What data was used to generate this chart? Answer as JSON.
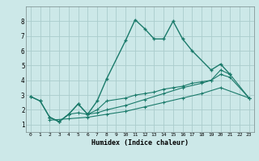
{
  "xlabel": "Humidex (Indice chaleur)",
  "background_color": "#cce8e8",
  "grid_color": "#aacccc",
  "line_color": "#1a7a6a",
  "xlim": [
    -0.5,
    23.5
  ],
  "ylim": [
    0.5,
    9.0
  ],
  "xticks": [
    0,
    1,
    2,
    3,
    4,
    5,
    6,
    7,
    8,
    9,
    10,
    11,
    12,
    13,
    14,
    15,
    16,
    17,
    18,
    19,
    20,
    21,
    22,
    23
  ],
  "yticks": [
    1,
    2,
    3,
    4,
    5,
    6,
    7,
    8
  ],
  "line1_x": [
    0,
    1,
    2,
    3,
    4,
    5,
    6,
    7,
    8,
    10,
    11,
    12,
    13,
    14,
    15,
    16,
    17,
    19,
    20,
    21
  ],
  "line1_y": [
    2.9,
    2.6,
    1.5,
    1.2,
    1.7,
    2.4,
    1.7,
    2.6,
    4.1,
    6.7,
    8.1,
    7.5,
    6.8,
    6.8,
    8.0,
    6.8,
    6.0,
    4.7,
    5.1,
    4.4
  ],
  "line2_x": [
    0,
    1,
    2,
    3,
    4,
    5,
    6,
    7,
    8,
    10,
    11,
    12,
    13,
    14,
    15,
    16,
    17,
    18,
    19,
    20,
    21,
    23
  ],
  "line2_y": [
    2.9,
    2.6,
    1.5,
    1.2,
    1.7,
    2.4,
    1.7,
    2.0,
    2.6,
    2.8,
    3.0,
    3.1,
    3.2,
    3.4,
    3.5,
    3.6,
    3.8,
    3.9,
    4.0,
    4.7,
    4.4,
    2.8
  ],
  "line3_x": [
    2,
    3,
    4,
    5,
    6,
    7,
    8,
    10,
    12,
    14,
    16,
    18,
    19,
    20,
    21,
    23
  ],
  "line3_y": [
    1.5,
    1.2,
    1.7,
    1.8,
    1.7,
    1.8,
    2.0,
    2.3,
    2.7,
    3.1,
    3.5,
    3.8,
    4.0,
    4.4,
    4.2,
    2.8
  ],
  "line4_x": [
    2,
    4,
    6,
    8,
    10,
    12,
    14,
    16,
    18,
    20,
    23
  ],
  "line4_y": [
    1.3,
    1.4,
    1.5,
    1.7,
    1.9,
    2.2,
    2.5,
    2.8,
    3.1,
    3.5,
    2.8
  ]
}
